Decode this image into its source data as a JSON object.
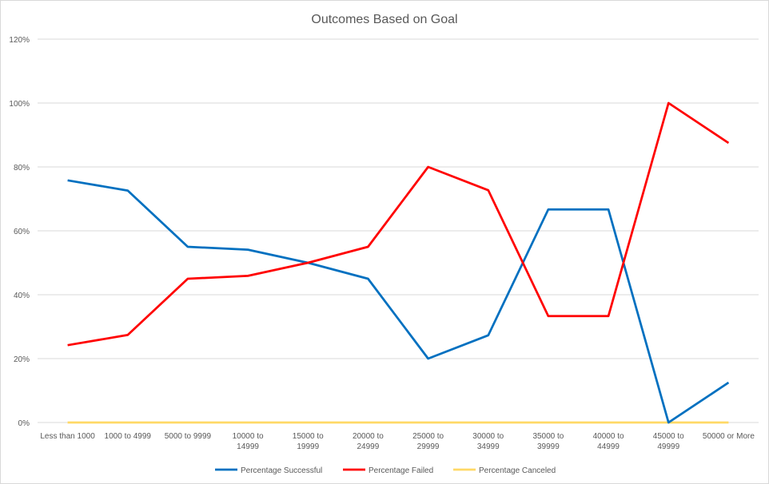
{
  "chart_data": {
    "type": "line",
    "title": "Outcomes Based on Goal",
    "xlabel": "",
    "ylabel": "",
    "ylim": [
      0,
      120
    ],
    "yticks": [
      0,
      20,
      40,
      60,
      80,
      100,
      120
    ],
    "ytick_labels": [
      "0%",
      "20%",
      "40%",
      "60%",
      "80%",
      "100%",
      "120%"
    ],
    "grid": true,
    "legend_position": "bottom",
    "categories": [
      [
        "Less than 1000"
      ],
      [
        "1000 to 4999"
      ],
      [
        "5000 to 9999"
      ],
      [
        "10000 to",
        "14999"
      ],
      [
        "15000 to",
        "19999"
      ],
      [
        "20000 to",
        "24999"
      ],
      [
        "25000 to",
        "29999"
      ],
      [
        "30000 to",
        "34999"
      ],
      [
        "35000 to",
        "39999"
      ],
      [
        "40000 to",
        "44999"
      ],
      [
        "45000 to",
        "49999"
      ],
      [
        "50000 or More"
      ]
    ],
    "series": [
      {
        "name": "Percentage Successful",
        "color": "#0070c0",
        "values": [
          75.8,
          72.6,
          55.0,
          54.1,
          50.0,
          45.0,
          20.0,
          27.3,
          66.7,
          66.7,
          0.0,
          12.5
        ]
      },
      {
        "name": "Percentage Failed",
        "color": "#ff0000",
        "values": [
          24.2,
          27.4,
          45.0,
          45.9,
          50.0,
          55.0,
          80.0,
          72.7,
          33.3,
          33.3,
          100.0,
          87.5
        ]
      },
      {
        "name": "Percentage Canceled",
        "color": "#ffd966",
        "values": [
          0,
          0,
          0,
          0,
          0,
          0,
          0,
          0,
          0,
          0,
          0,
          0
        ]
      }
    ]
  }
}
